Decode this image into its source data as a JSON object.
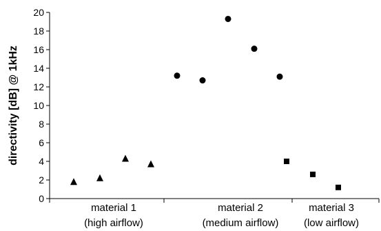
{
  "chart_data": {
    "type": "scatter",
    "title": "",
    "xlabel": "",
    "ylabel": "directivity [dB] @ 1kHz",
    "ylim": [
      0,
      20
    ],
    "yticks": [
      0,
      2,
      4,
      6,
      8,
      10,
      12,
      14,
      16,
      18,
      20
    ],
    "grid": false,
    "legend": "none",
    "categories": [
      {
        "line1": "material 1",
        "line2": "(high airflow)"
      },
      {
        "line1": "material 2",
        "line2": "(medium airflow)"
      },
      {
        "line1": "material 3",
        "line2": "(low airflow)"
      }
    ],
    "series": [
      {
        "marker": "triangle",
        "color": "#000000",
        "x": [
          1,
          2,
          3,
          4
        ],
        "values": [
          1.8,
          2.2,
          4.3,
          3.7
        ]
      },
      {
        "marker": "circle",
        "color": "#000000",
        "x": [
          5,
          6,
          7,
          8,
          9
        ],
        "values": [
          13.2,
          12.7,
          19.3,
          16.1,
          13.1
        ]
      },
      {
        "marker": "square",
        "color": "#000000",
        "x": [
          10,
          11,
          12
        ],
        "values": [
          4.0,
          2.6,
          1.2
        ]
      }
    ]
  }
}
